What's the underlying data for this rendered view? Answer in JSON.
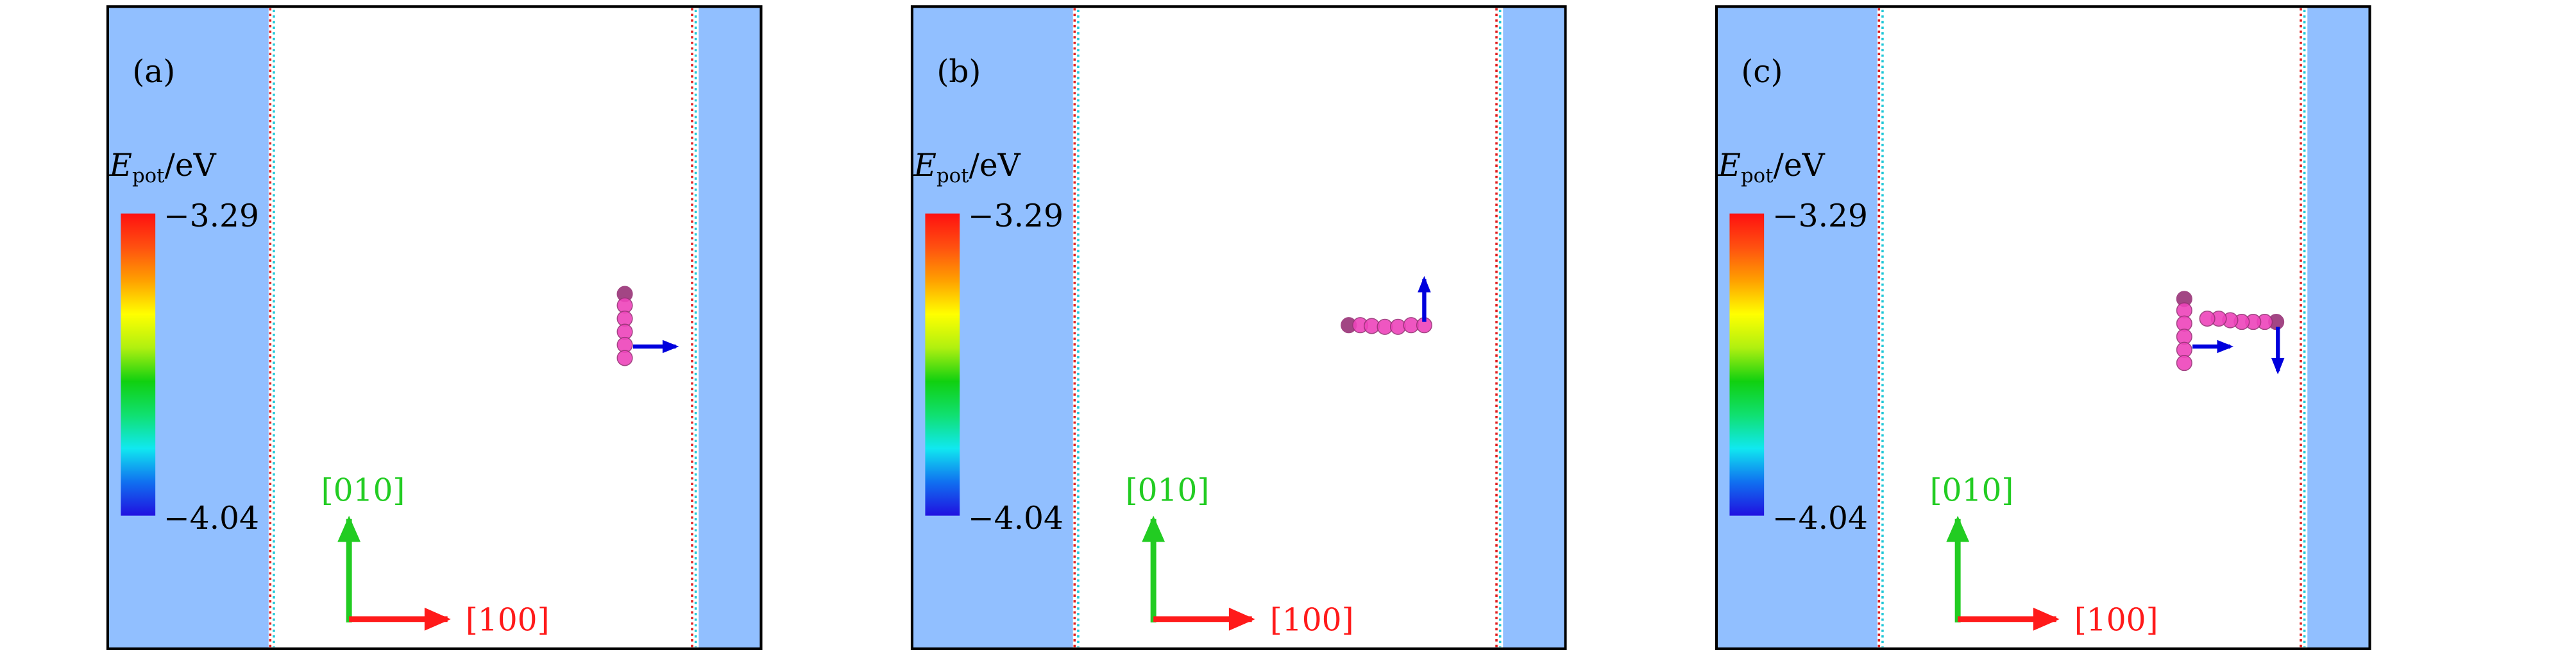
{
  "panels": [
    {
      "label": "(a)",
      "colorbar_title_main": "E",
      "colorbar_title_sub": "pot",
      "colorbar_title_unit": "/eV",
      "colorbar_max": "−3.29",
      "colorbar_min": "−4.04",
      "axis_y_label": "[010]",
      "axis_x_label": "[100]"
    },
    {
      "label": "(b)",
      "colorbar_title_main": "E",
      "colorbar_title_sub": "pot",
      "colorbar_title_unit": "/eV",
      "colorbar_max": "−3.29",
      "colorbar_min": "−4.04",
      "axis_y_label": "[010]",
      "axis_x_label": "[100]"
    },
    {
      "label": "(c)",
      "colorbar_title_main": "E",
      "colorbar_title_sub": "pot",
      "colorbar_title_unit": "/eV",
      "colorbar_max": "−3.29",
      "colorbar_min": "−4.04",
      "axis_y_label": "[010]",
      "axis_x_label": "[100]"
    }
  ],
  "colors": {
    "slab": "#91bfff",
    "atom_pink": "#ee44bb",
    "atom_dark": "#993377",
    "motion_arrow": "#0000dd",
    "axis_x": "#ff1a1a",
    "axis_y": "#22cc22",
    "boundary_red": "#e02020",
    "boundary_cyan": "#20c8d8"
  },
  "colorbar_stops": [
    "#2010e0",
    "#1070f0",
    "#10e8f0",
    "#10e070",
    "#10d010",
    "#b0f010",
    "#ffff00",
    "#ffa000",
    "#ff5010",
    "#ff1010"
  ]
}
